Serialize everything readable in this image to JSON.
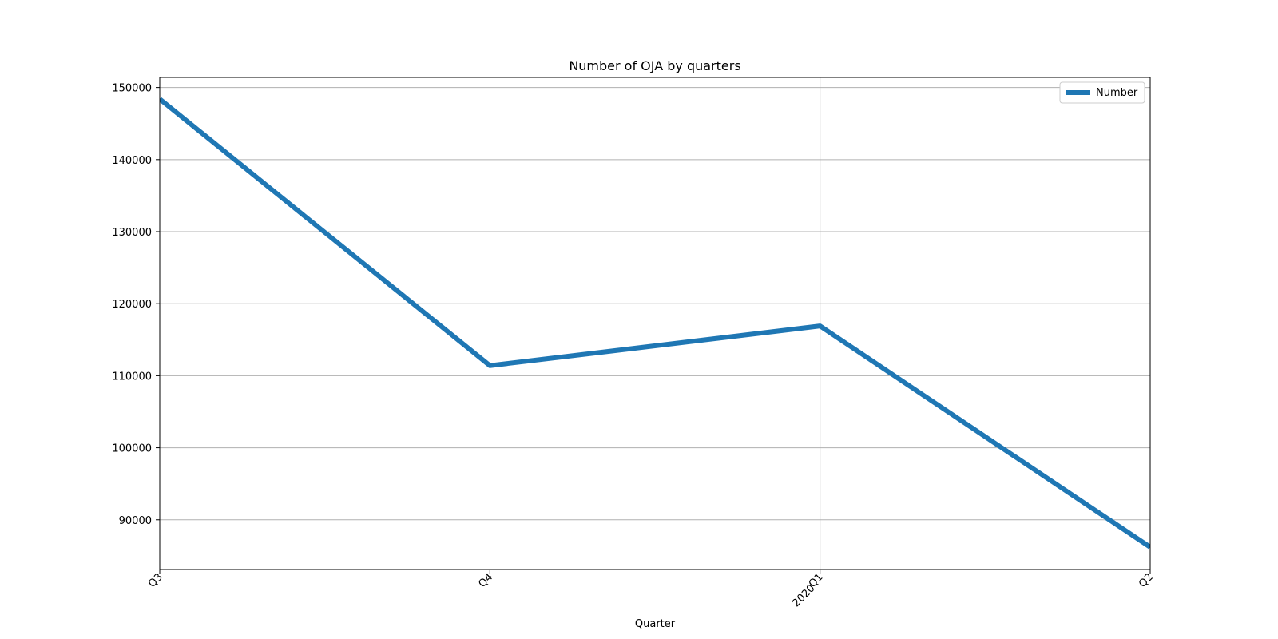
{
  "chart_data": {
    "type": "line",
    "title": "Number of OJA by quarters",
    "xlabel": "Quarter",
    "ylabel": "",
    "categories": [
      "Q3",
      "Q4",
      "Q1",
      "Q2"
    ],
    "category_sublabels": [
      "",
      "",
      "2020",
      ""
    ],
    "series": [
      {
        "name": "Number",
        "values": [
          148400,
          111400,
          116900,
          86200
        ]
      }
    ],
    "ylim": [
      83100,
      151400
    ],
    "yticks": [
      90000,
      100000,
      110000,
      120000,
      130000,
      140000,
      150000
    ],
    "grid": true,
    "legend_position": "top-right",
    "colors": {
      "line": "#1f77b4",
      "grid": "#b0b0b0",
      "axis": "#000000"
    }
  }
}
